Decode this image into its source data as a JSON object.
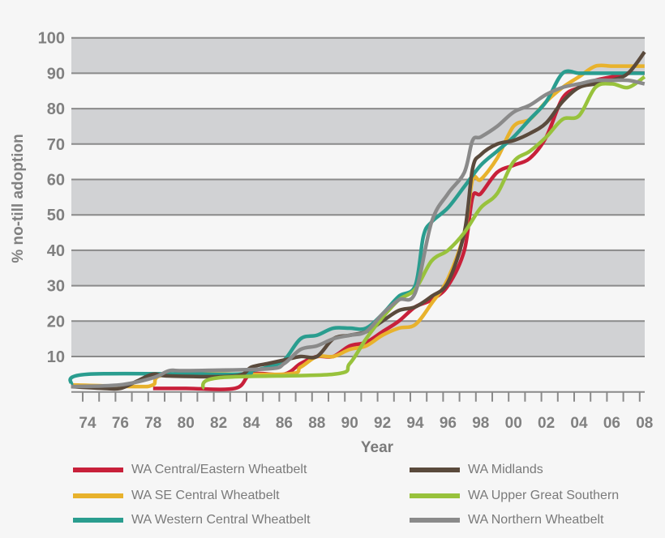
{
  "chart_data": {
    "type": "line",
    "title": "",
    "xlabel": "Year",
    "ylabel": "% no-till adoption",
    "xlim": [
      1973,
      2008
    ],
    "ylim": [
      0,
      100
    ],
    "x_tick_labels": [
      "74",
      "76",
      "78",
      "80",
      "82",
      "84",
      "86",
      "88",
      "90",
      "92",
      "94",
      "96",
      "98",
      "00",
      "02",
      "04",
      "06",
      "08"
    ],
    "y_tick_labels": [
      "10",
      "20",
      "30",
      "40",
      "50",
      "60",
      "70",
      "80",
      "90",
      "100"
    ],
    "grid": "horizontal bands",
    "legend": "bottom",
    "series": [
      {
        "name": "WA Central/Eastern Wheatbelt",
        "color": "#c8203a",
        "x": [
          1978,
          1980,
          1983,
          1984,
          1986,
          1987,
          1988,
          1989,
          1990,
          1991,
          1992,
          1993,
          1994,
          1995,
          1996,
          1997,
          1997.5,
          1998,
          1999,
          2000,
          2001,
          2002,
          2003,
          2004,
          2005,
          2006,
          2007,
          2008
        ],
        "y": [
          1,
          1,
          1,
          5,
          5,
          8,
          10,
          10,
          13,
          14,
          17,
          20,
          24,
          26,
          30,
          40,
          55,
          56,
          62,
          64,
          66,
          72,
          83,
          86,
          88,
          89,
          90,
          90
        ]
      },
      {
        "name": "WA SE Central Wheatbelt",
        "color": "#e8b22c",
        "x": [
          1973,
          1977,
          1978,
          1979,
          1986,
          1987,
          1988,
          1989,
          1990,
          1991,
          1992,
          1993,
          1994,
          1995,
          1996,
          1997,
          1997.5,
          1998,
          1999,
          2000,
          2001,
          2002,
          2003,
          2004,
          2005,
          2006,
          2007,
          2008
        ],
        "y": [
          2,
          1.5,
          2,
          5,
          5,
          7,
          10,
          10,
          12,
          13,
          16,
          18,
          19,
          25,
          32,
          45,
          60,
          60,
          66,
          75,
          77,
          82,
          86,
          89,
          92,
          92,
          92,
          92
        ]
      },
      {
        "name": "WA Western Central Wheatbelt",
        "color": "#2a9d8f",
        "x": [
          1973,
          1974,
          1983,
          1984,
          1985,
          1986,
          1987,
          1988,
          1989,
          1990,
          1991,
          1992,
          1993,
          1994,
          1994.5,
          1995,
          1996,
          1997,
          1998,
          1999,
          2000,
          2001,
          2002,
          2003,
          2004,
          2005,
          2006,
          2007,
          2008
        ],
        "y": [
          2,
          5,
          5,
          6,
          7,
          9,
          15,
          16,
          18,
          18,
          18,
          22,
          27,
          30,
          44,
          48,
          52,
          58,
          64,
          68,
          72,
          77,
          82,
          90,
          90,
          90,
          90,
          90,
          90
        ]
      },
      {
        "name": "WA Midlands",
        "color": "#5a4a3c",
        "x": [
          1973,
          1975,
          1976,
          1977,
          1978,
          1979,
          1983,
          1984,
          1985,
          1986,
          1987,
          1988,
          1989,
          1990,
          1991,
          1992,
          1993,
          1994,
          1995,
          1996,
          1997,
          1997.5,
          1998,
          1999,
          2000,
          2001,
          2002,
          2003,
          2004,
          2005,
          2006,
          2007,
          2008
        ],
        "y": [
          1.5,
          1,
          1,
          3,
          5,
          4.5,
          4.5,
          7,
          8,
          9,
          10,
          10,
          15,
          16,
          17,
          20,
          23,
          24,
          27,
          31,
          45,
          63,
          67,
          70,
          71,
          73,
          76,
          82,
          86,
          87,
          88,
          90,
          96
        ]
      },
      {
        "name": "WA Upper Great Southern",
        "color": "#98c23c",
        "x": [
          1981,
          1982,
          1989,
          1990,
          1991,
          1992,
          1993,
          1994,
          1995,
          1996,
          1997,
          1998,
          1999,
          2000,
          2001,
          2002,
          2003,
          2004,
          2005,
          2006,
          2007,
          2008
        ],
        "y": [
          1,
          4,
          5,
          8,
          15,
          21,
          26,
          29,
          37,
          40,
          45,
          52,
          56,
          65,
          68,
          72,
          77,
          78,
          86,
          87,
          86,
          89
        ]
      },
      {
        "name": "WA Northern Wheatbelt",
        "color": "#8a8a8a",
        "x": [
          1973,
          1976,
          1978,
          1979,
          1980,
          1985,
          1986,
          1987,
          1988,
          1989,
          1990,
          1991,
          1992,
          1993,
          1994,
          1995,
          1996,
          1997,
          1997.5,
          1998,
          1999,
          2000,
          2001,
          2002,
          2003,
          2004,
          2005,
          2006,
          2007,
          2008
        ],
        "y": [
          1.5,
          2,
          4,
          6,
          6,
          6.5,
          8,
          12,
          13,
          15,
          16,
          17,
          22,
          26,
          28,
          48,
          56,
          62,
          71,
          72,
          75,
          79,
          81,
          84,
          86,
          87,
          88,
          88,
          88,
          87
        ]
      }
    ]
  }
}
